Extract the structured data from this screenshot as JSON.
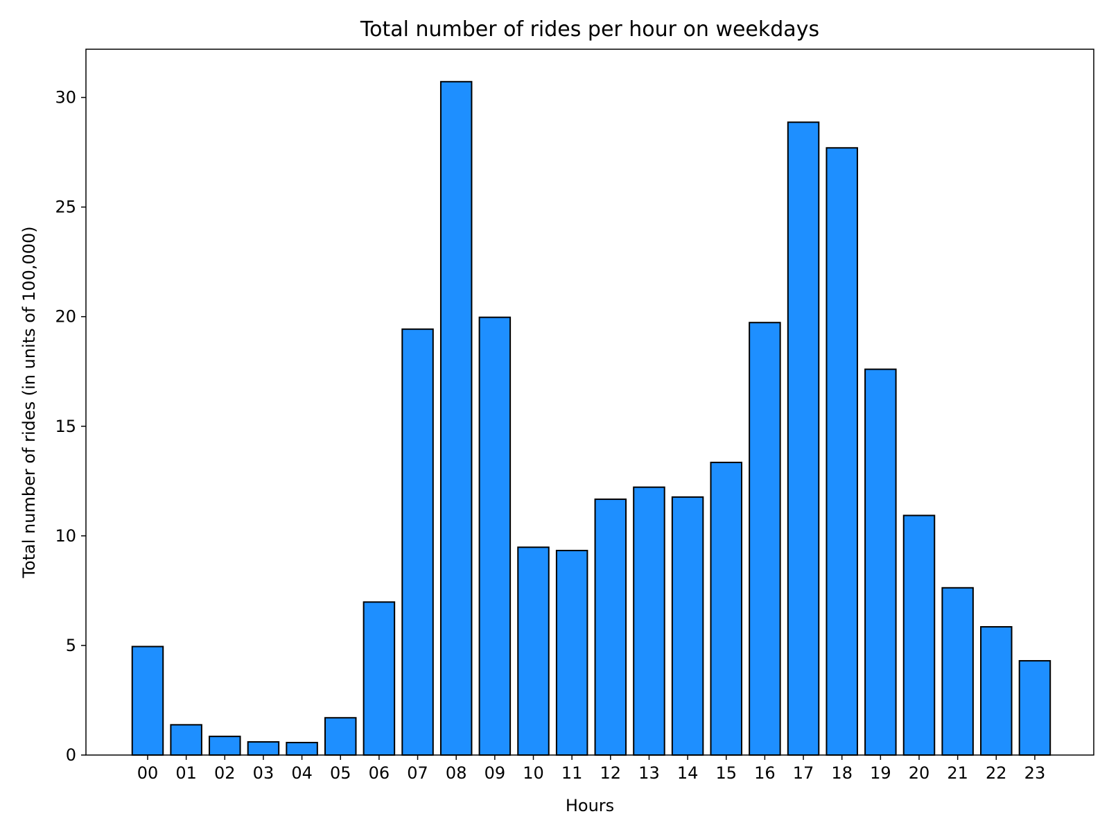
{
  "chart_data": {
    "type": "bar",
    "title": "Total number of rides per hour on weekdays",
    "xlabel": "Hours",
    "ylabel": "Total number of rides (in units of 100,000)",
    "categories": [
      "00",
      "01",
      "02",
      "03",
      "04",
      "05",
      "06",
      "07",
      "08",
      "09",
      "10",
      "11",
      "12",
      "13",
      "14",
      "15",
      "16",
      "17",
      "18",
      "19",
      "20",
      "21",
      "22",
      "23"
    ],
    "values": [
      4.95,
      1.38,
      0.85,
      0.6,
      0.57,
      1.7,
      6.98,
      19.43,
      30.72,
      19.97,
      9.48,
      9.33,
      11.67,
      12.22,
      11.77,
      13.35,
      19.73,
      28.87,
      27.7,
      17.6,
      10.93,
      7.63,
      5.85,
      4.3
    ],
    "yticks": [
      0,
      5,
      10,
      15,
      20,
      25,
      30
    ],
    "ylim": [
      0,
      32.2
    ],
    "bar_color": "#1e8fff",
    "edge_color": "#000000",
    "grid": false,
    "legend": "none"
  }
}
